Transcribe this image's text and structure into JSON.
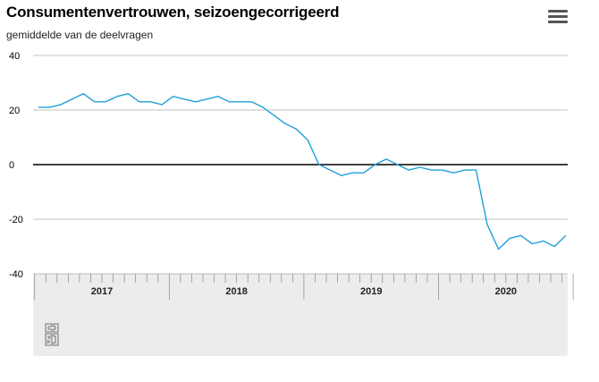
{
  "chart_data": {
    "type": "line",
    "title": "Consumentenvertrouwen, seizoengecorrigeerd",
    "subtitle": "gemiddelde van de deelvragen",
    "xlabel": "",
    "ylabel": "",
    "ylim": [
      -40,
      40
    ],
    "yticks": [
      "40",
      "20",
      "0",
      "-20",
      "-40"
    ],
    "year_labels": [
      "2017",
      "2018",
      "2019",
      "2020"
    ],
    "grid": true,
    "series": [
      {
        "name": "",
        "color": "#1fa0d6",
        "x": [
          "2017-01",
          "2017-02",
          "2017-03",
          "2017-04",
          "2017-05",
          "2017-06",
          "2017-07",
          "2017-08",
          "2017-09",
          "2017-10",
          "2017-11",
          "2017-12",
          "2018-01",
          "2018-02",
          "2018-03",
          "2018-04",
          "2018-05",
          "2018-06",
          "2018-07",
          "2018-08",
          "2018-09",
          "2018-10",
          "2018-11",
          "2018-12",
          "2019-01",
          "2019-02",
          "2019-03",
          "2019-04",
          "2019-05",
          "2019-06",
          "2019-07",
          "2019-08",
          "2019-09",
          "2019-10",
          "2019-11",
          "2019-12",
          "2020-01",
          "2020-02",
          "2020-03",
          "2020-04",
          "2020-05",
          "2020-06",
          "2020-07",
          "2020-08",
          "2020-09",
          "2020-10",
          "2020-11",
          "2020-12"
        ],
        "values": [
          21,
          21,
          22,
          24,
          26,
          23,
          23,
          25,
          26,
          23,
          23,
          22,
          25,
          24,
          23,
          24,
          25,
          23,
          23,
          23,
          21,
          18,
          15,
          13,
          9,
          0,
          -2,
          -4,
          -3,
          -3,
          0,
          2,
          0,
          -2,
          -1,
          -2,
          -2,
          -3,
          -2,
          -2,
          -22,
          -31,
          -27,
          -26,
          -29,
          -28,
          -30,
          -26
        ]
      }
    ]
  },
  "colors": {
    "line": "#1fa0d6",
    "zero_line": "#000000",
    "grid": "#888888",
    "axis_band": "#ececec"
  },
  "ui": {
    "menu_icon": "hamburger-menu-icon",
    "logo_icon": "cbs-logo-icon",
    "logo_text": "cbs"
  }
}
